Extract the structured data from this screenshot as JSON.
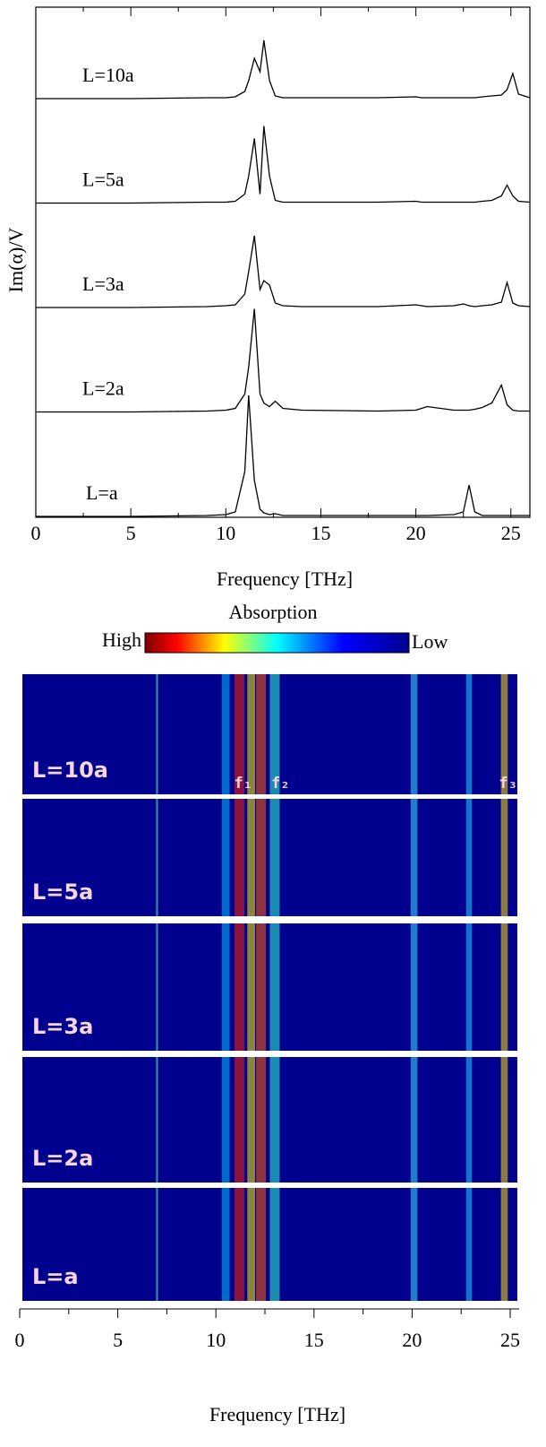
{
  "chart_data": [
    {
      "type": "line",
      "y_label": "Im(α)/V",
      "x_label": "Frequency [THz]",
      "xlim": [
        0,
        26
      ],
      "xticks": [
        0,
        5,
        10,
        15,
        20,
        25
      ],
      "minor_xticks": [
        2.5,
        7.5,
        12.5,
        17.5,
        22.5
      ],
      "x": [
        0,
        5,
        9,
        10,
        10.5,
        11,
        11.2,
        11.5,
        11.8,
        12,
        12.3,
        12.6,
        13,
        14,
        18,
        20,
        20.3,
        20.6,
        22,
        22.5,
        22.8,
        23.1,
        23.5,
        24,
        24.5,
        24.8,
        25.1,
        25.4,
        26
      ],
      "series": [
        {
          "name": "L=10a",
          "color": "#000000",
          "values": [
            0,
            0,
            0.01,
            0.01,
            0.02,
            0.08,
            0.2,
            0.45,
            0.3,
            0.65,
            0.2,
            0.03,
            0.01,
            0.01,
            0.01,
            0.02,
            0.01,
            0.01,
            0.01,
            0.01,
            0.01,
            0.01,
            0.02,
            0.03,
            0.04,
            0.1,
            0.28,
            0.05,
            0.01
          ]
        },
        {
          "name": "L=5a",
          "color": "#000000",
          "values": [
            0,
            0,
            0.01,
            0.01,
            0.02,
            0.1,
            0.3,
            0.72,
            0.1,
            0.86,
            0.3,
            0.03,
            0.01,
            0.01,
            0.01,
            0.02,
            0.01,
            0.01,
            0.01,
            0.01,
            0.01,
            0.01,
            0.02,
            0.03,
            0.08,
            0.2,
            0.08,
            0.02,
            0.01
          ]
        },
        {
          "name": "L=3a",
          "color": "#000000",
          "values": [
            0,
            0,
            0.01,
            0.02,
            0.03,
            0.15,
            0.4,
            0.8,
            0.2,
            0.3,
            0.25,
            0.05,
            0.02,
            0.01,
            0.01,
            0.03,
            0.02,
            0.01,
            0.02,
            0.04,
            0.02,
            0.01,
            0.02,
            0.03,
            0.06,
            0.28,
            0.05,
            0.02,
            0.01
          ]
        },
        {
          "name": "L=2a",
          "color": "#000000",
          "values": [
            0,
            0,
            0.01,
            0.02,
            0.04,
            0.2,
            0.5,
            1.15,
            0.2,
            0.1,
            0.06,
            0.12,
            0.04,
            0.02,
            0.01,
            0.02,
            0.04,
            0.06,
            0.02,
            0.02,
            0.02,
            0.03,
            0.05,
            0.1,
            0.3,
            0.08,
            0.02,
            0.01,
            0.01
          ]
        },
        {
          "name": "L=a",
          "color": "#000000",
          "values": [
            0,
            0,
            0.01,
            0.02,
            0.05,
            0.5,
            1.35,
            0.4,
            0.08,
            0.04,
            0.02,
            0.03,
            0.01,
            0.01,
            0.01,
            0.01,
            0.01,
            0.01,
            0.02,
            0.05,
            0.35,
            0.05,
            0.01,
            0.01,
            0.01,
            0.01,
            0.01,
            0.01,
            0.01
          ]
        }
      ]
    },
    {
      "type": "heatmap",
      "colorbar_title": "Absorption",
      "colorbar_high": "High",
      "colorbar_low": "Low",
      "x_label": "Frequency [THz]",
      "xlim": [
        0,
        25.5
      ],
      "xticks": [
        0,
        5,
        10,
        15,
        20,
        25
      ],
      "minor_xticks": [
        2.5,
        7.5,
        12.5,
        17.5,
        22.5
      ],
      "panels": [
        "L=10a",
        "L=5a",
        "L=3a",
        "L=2a",
        "L=a"
      ],
      "peak_labels": [
        "f₁",
        "f₂",
        "f₃"
      ]
    }
  ]
}
